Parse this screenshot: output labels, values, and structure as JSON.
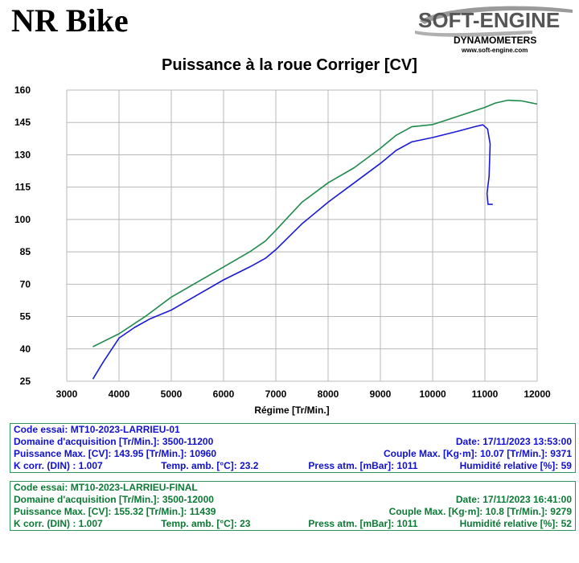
{
  "header": {
    "brand": "NR Bike",
    "logo": {
      "line1": "SOFT-ENGINE",
      "line2": "DYNAMOMETERS",
      "url": "www.soft-engine.com"
    }
  },
  "chart_data": {
    "type": "line",
    "title": "Puissance à la roue Corriger [CV]",
    "xlabel": "Régime [Tr/Min.]",
    "ylabel": "",
    "xlim": [
      3000,
      12000
    ],
    "ylim": [
      25,
      160
    ],
    "xticks": [
      3000,
      4000,
      5000,
      6000,
      7000,
      8000,
      9000,
      10000,
      11000,
      12000
    ],
    "yticks": [
      25,
      40,
      55,
      70,
      85,
      100,
      115,
      130,
      145,
      160
    ],
    "grid": true,
    "legend": "none",
    "series": [
      {
        "color": "#1a1ad6",
        "points": [
          [
            3500,
            26
          ],
          [
            3700,
            34
          ],
          [
            4000,
            45
          ],
          [
            4300,
            50
          ],
          [
            4600,
            54
          ],
          [
            5000,
            58
          ],
          [
            5500,
            65
          ],
          [
            6000,
            72
          ],
          [
            6500,
            78
          ],
          [
            6800,
            82
          ],
          [
            7000,
            86
          ],
          [
            7500,
            98
          ],
          [
            8000,
            108
          ],
          [
            8500,
            117
          ],
          [
            9000,
            126
          ],
          [
            9300,
            132
          ],
          [
            9600,
            136
          ],
          [
            10000,
            138
          ],
          [
            10500,
            141
          ],
          [
            10800,
            143
          ],
          [
            10960,
            143.9
          ],
          [
            11050,
            142
          ],
          [
            11100,
            135
          ],
          [
            11080,
            120
          ],
          [
            11040,
            112
          ],
          [
            11060,
            107
          ],
          [
            11150,
            107
          ]
        ]
      },
      {
        "color": "#1f8a4c",
        "points": [
          [
            3500,
            41
          ],
          [
            4000,
            47
          ],
          [
            4500,
            55
          ],
          [
            5000,
            64
          ],
          [
            5500,
            71
          ],
          [
            6000,
            78
          ],
          [
            6500,
            85
          ],
          [
            6800,
            90
          ],
          [
            7000,
            95
          ],
          [
            7500,
            108
          ],
          [
            8000,
            117
          ],
          [
            8500,
            124
          ],
          [
            9000,
            133
          ],
          [
            9300,
            139
          ],
          [
            9600,
            143
          ],
          [
            10000,
            144
          ],
          [
            10500,
            148
          ],
          [
            11000,
            152
          ],
          [
            11200,
            154
          ],
          [
            11439,
            155.3
          ],
          [
            11700,
            155
          ],
          [
            12000,
            153.5
          ]
        ]
      }
    ]
  },
  "runs": [
    {
      "code": "Code essai: MT10-2023-LARRIEU-01",
      "domaine": "Domaine d'acquisition [Tr/Min.]: 3500-11200",
      "date": "Date: 17/11/2023   13:53:00",
      "puissance": "Puissance Max. [CV]: 143.95   [Tr/Min.]: 10960",
      "couple": "Couple Max. [Kg·m]: 10.07   [Tr/Min.]: 9371",
      "kcorr": "K corr. (DIN) : 1.007",
      "temp": "Temp. amb. [°C]: 23.2",
      "press": "Press atm. [mBar]: 1011",
      "humid": "Humidité relative [%]: 59"
    },
    {
      "code": "Code essai: MT10-2023-LARRIEU-FINAL",
      "domaine": "Domaine d'acquisition [Tr/Min.]: 3500-12000",
      "date": "Date: 17/11/2023   16:41:00",
      "puissance": "Puissance Max. [CV]: 155.32   [Tr/Min.]: 11439",
      "couple": "Couple Max. [Kg·m]: 10.8   [Tr/Min.]: 9279",
      "kcorr": "K corr. (DIN) : 1.007",
      "temp": "Temp. amb. [°C]: 23",
      "press": "Press atm. [mBar]: 1011",
      "humid": "Humidité relative [%]: 52"
    }
  ]
}
